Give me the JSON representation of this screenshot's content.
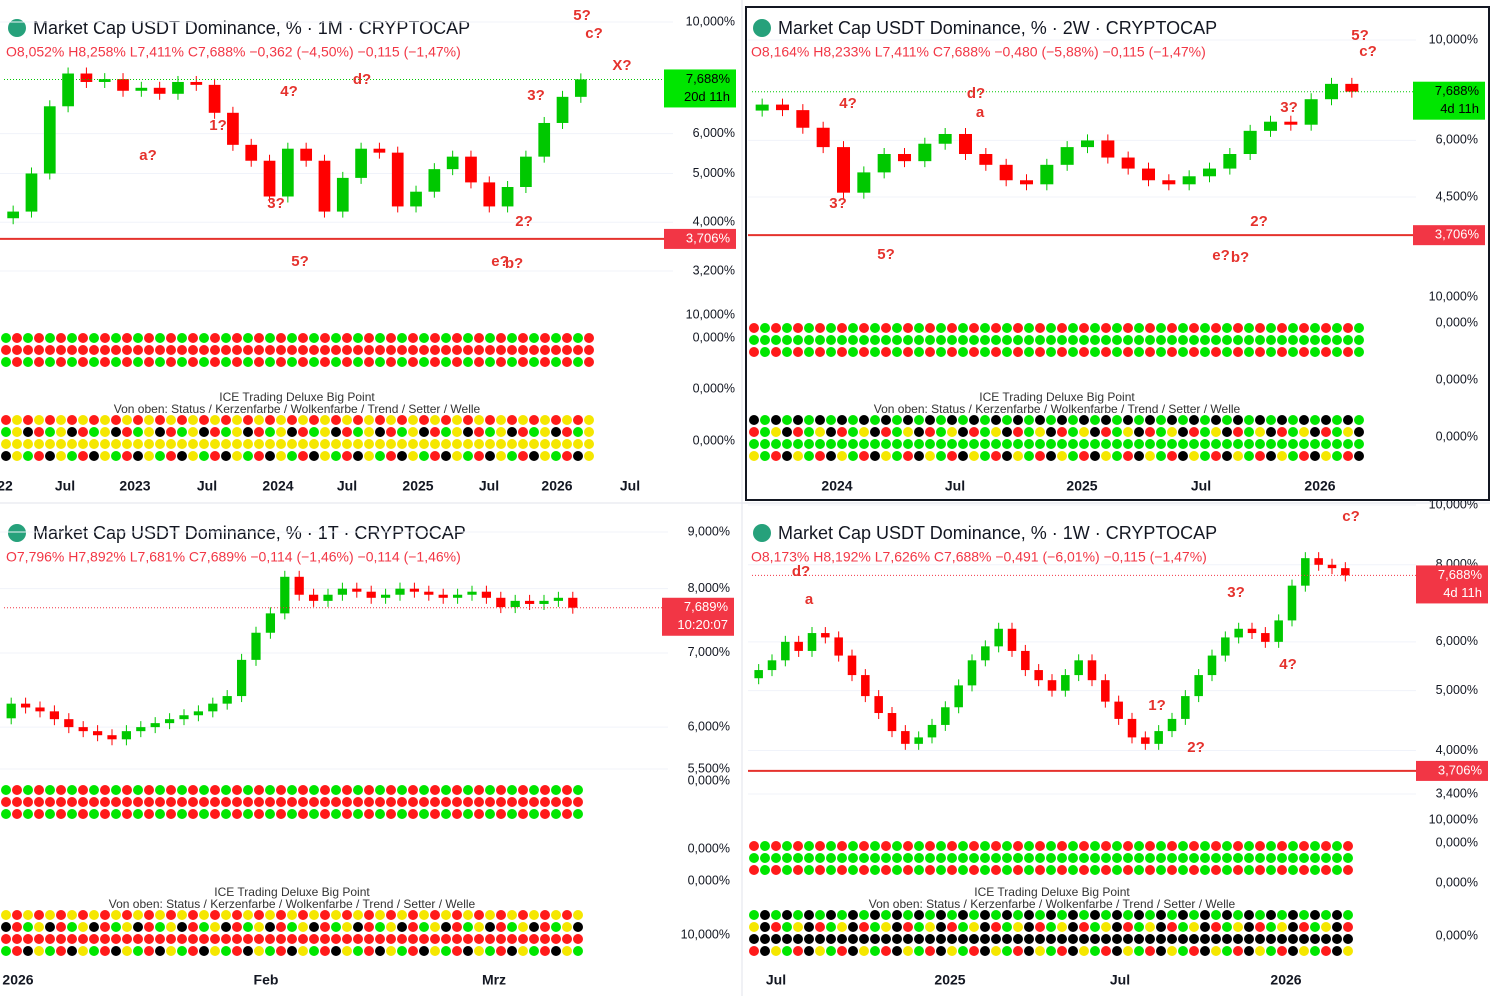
{
  "chart_data": [
    {
      "type": "candlestick",
      "title": "Market Cap USDT Dominance, % · 1M · CRYPTOCAP",
      "subtitle": "O8,052% H8,258% L7,411% C7,688% −0,362 (−4,50%) −0,115 (−1,47%)",
      "values": [
        4.2,
        5.0,
        6.8,
        7.9,
        7.6,
        7.7,
        7.3,
        7.4,
        7.2,
        7.6,
        7.5,
        6.6,
        5.7,
        5.3,
        4.5,
        5.6,
        5.3,
        4.2,
        4.9,
        5.6,
        5.5,
        4.3,
        4.6,
        5.1,
        5.4,
        4.8,
        4.3,
        4.7,
        5.4,
        6.3,
        7.1,
        7.69
      ],
      "log_scale": true,
      "ylim": [
        3.2,
        10
      ],
      "yticks": [
        {
          "value": 10,
          "label": "10,000%"
        },
        {
          "value": 6,
          "label": "6,000%"
        },
        {
          "value": 5,
          "label": "5,000%"
        },
        {
          "value": 4,
          "label": "4,000%"
        },
        {
          "value": 3.2,
          "label": "3,200%"
        }
      ],
      "price_tag": {
        "value": 7.688,
        "label": "7,688%",
        "countdown": "20d 11h"
      },
      "support": {
        "value": 3.706,
        "label": "3,706%"
      },
      "time_labels": [
        "22",
        "Jul",
        "2023",
        "Jul",
        "2024",
        "Jul",
        "2025",
        "Jul",
        "2026",
        "Jul"
      ],
      "annotations": [
        "5?",
        "c?",
        "X?",
        "3?",
        "4?",
        "1?",
        "a?",
        "d?",
        "3?",
        "5?",
        "2?",
        "e?",
        "b?"
      ],
      "indicator_title": "ICE Trading Deluxe Big Point",
      "indicator_legend": "Von oben: Status / Kerzenfarbe / Wolkenfarbe / Trend / Setter / Welle",
      "indicator_labels": [
        "0,000%",
        "0,000%",
        "0,000%",
        "10,000%"
      ]
    },
    {
      "type": "candlestick",
      "title": "Market Cap USDT Dominance, % · 2W · CRYPTOCAP",
      "subtitle": "O8,164% H8,233% L7,411% C7,688% −0,480 (−5,88%) −0,115 (−1,47%)",
      "values": [
        7.2,
        7.0,
        6.4,
        5.8,
        4.6,
        5.1,
        5.6,
        5.4,
        5.9,
        6.2,
        5.6,
        5.3,
        4.9,
        4.8,
        5.3,
        5.8,
        6.0,
        5.5,
        5.2,
        4.9,
        4.8,
        5.0,
        5.2,
        5.6,
        6.3,
        6.6,
        6.5,
        7.4,
        8.0,
        7.69
      ],
      "log_scale": true,
      "ylim": [
        4.5,
        10
      ],
      "yticks": [
        {
          "value": 10,
          "label": "10,000%"
        },
        {
          "value": 6,
          "label": "6,000%"
        },
        {
          "value": 4.5,
          "label": "4,500%"
        }
      ],
      "price_tag": {
        "value": 7.688,
        "label": "7,688%",
        "countdown": "4d 11h"
      },
      "support": {
        "value": 3.706,
        "label": "3,706%"
      },
      "time_labels": [
        "2024",
        "Jul",
        "2025",
        "Jul",
        "2026"
      ],
      "annotations": [
        "5?",
        "c?",
        "4?",
        "d?",
        "a",
        "3?",
        "5?",
        "3?",
        "2?",
        "e?",
        "b?"
      ],
      "indicator_title": "ICE Trading Deluxe Big Point",
      "indicator_legend": "Von oben: Status / Kerzenfarbe / Wolkenfarbe / Trend / Setter / Welle",
      "indicator_labels": [
        "0,000%",
        "0,000%",
        "0,000%",
        "10,000%"
      ]
    },
    {
      "type": "candlestick",
      "title": "Market Cap USDT Dominance, % · 1T · CRYPTOCAP",
      "subtitle": "O7,796% H7,892% L7,681% C7,689% −0,114 (−1,46%) −0,114 (−1,46%)",
      "values": [
        6.3,
        6.25,
        6.2,
        6.1,
        6.0,
        5.95,
        5.9,
        5.85,
        5.95,
        6.0,
        6.05,
        6.1,
        6.15,
        6.2,
        6.3,
        6.4,
        6.9,
        7.3,
        7.6,
        8.2,
        7.9,
        7.8,
        7.9,
        8.0,
        7.95,
        7.85,
        7.9,
        8.0,
        7.95,
        7.9,
        7.85,
        7.9,
        7.95,
        7.85,
        7.7,
        7.8,
        7.75,
        7.8,
        7.85,
        7.69
      ],
      "log_scale": true,
      "ylim": [
        5.5,
        9
      ],
      "yticks": [
        {
          "value": 9,
          "label": "9,000%"
        },
        {
          "value": 8,
          "label": "8,000%"
        },
        {
          "value": 7,
          "label": "7,000%"
        },
        {
          "value": 6,
          "label": "6,000%"
        },
        {
          "value": 5.5,
          "label": "5,500%"
        }
      ],
      "price_tag": {
        "value": 7.689,
        "label": "7,689%",
        "countdown": "10:20:07"
      },
      "time_labels": [
        "2026",
        "Feb",
        "Mrz"
      ],
      "annotations": [],
      "indicator_title": "ICE Trading Deluxe Big Point",
      "indicator_legend": "Von oben: Status / Kerzenfarbe / Wolkenfarbe / Trend / Setter / Welle",
      "indicator_labels": [
        "0,000%",
        "0,000%",
        "0,000%",
        "10,000%"
      ]
    },
    {
      "type": "candlestick",
      "title": "Market Cap USDT Dominance, % · 1W · CRYPTOCAP",
      "subtitle": "O8,173% H8,192% L7,626% C7,688% −0,491 (−6,01%) −0,115 (−1,47%)",
      "values": [
        5.4,
        5.6,
        6.0,
        5.8,
        6.2,
        6.1,
        5.7,
        5.3,
        4.9,
        4.6,
        4.3,
        4.1,
        4.2,
        4.4,
        4.7,
        5.1,
        5.6,
        5.9,
        6.3,
        5.8,
        5.4,
        5.2,
        5.0,
        5.3,
        5.6,
        5.2,
        4.8,
        4.5,
        4.2,
        4.1,
        4.3,
        4.5,
        4.9,
        5.3,
        5.7,
        6.1,
        6.3,
        6.2,
        6.0,
        6.5,
        7.4,
        8.2,
        8.0,
        7.9,
        7.69
      ],
      "log_scale": true,
      "ylim": [
        3.4,
        10
      ],
      "yticks": [
        {
          "value": 10,
          "label": "10,000%"
        },
        {
          "value": 8,
          "label": "8,000%"
        },
        {
          "value": 6,
          "label": "6,000%"
        },
        {
          "value": 5,
          "label": "5,000%"
        },
        {
          "value": 4,
          "label": "4,000%"
        },
        {
          "value": 3.4,
          "label": "3,400%"
        }
      ],
      "price_tag": {
        "value": 7.688,
        "label": "7,688%",
        "countdown": "4d 11h"
      },
      "support": {
        "value": 3.706,
        "label": "3,706%"
      },
      "time_labels": [
        "Jul",
        "2025",
        "Jul",
        "2026"
      ],
      "annotations": [
        "c?",
        "d?",
        "a",
        "3?",
        "1?",
        "2?",
        "4?"
      ],
      "indicator_title": "ICE Trading Deluxe Big Point",
      "indicator_legend": "Von oben: Status / Kerzenfarbe / Wolkenfarbe / Trend / Setter / Welle",
      "indicator_labels": [
        "0,000%",
        "0,000%",
        "0,000%",
        "10,000%"
      ]
    }
  ]
}
